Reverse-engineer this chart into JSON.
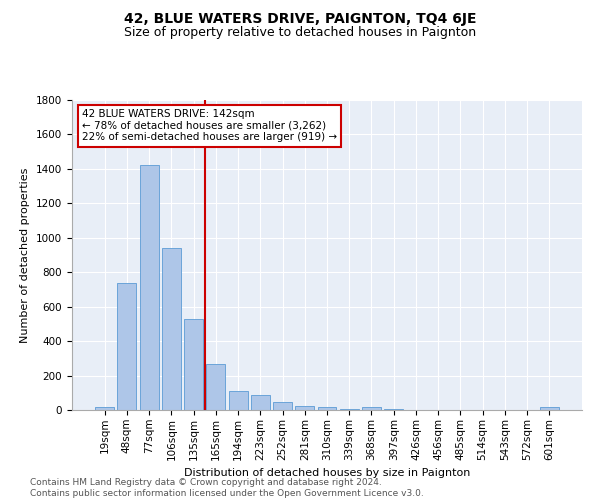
{
  "title": "42, BLUE WATERS DRIVE, PAIGNTON, TQ4 6JE",
  "subtitle": "Size of property relative to detached houses in Paignton",
  "xlabel": "Distribution of detached houses by size in Paignton",
  "ylabel": "Number of detached properties",
  "bar_labels": [
    "19sqm",
    "48sqm",
    "77sqm",
    "106sqm",
    "135sqm",
    "165sqm",
    "194sqm",
    "223sqm",
    "252sqm",
    "281sqm",
    "310sqm",
    "339sqm",
    "368sqm",
    "397sqm",
    "426sqm",
    "456sqm",
    "485sqm",
    "514sqm",
    "543sqm",
    "572sqm",
    "601sqm"
  ],
  "bar_values": [
    20,
    740,
    1420,
    940,
    530,
    265,
    110,
    90,
    45,
    25,
    15,
    5,
    15,
    3,
    2,
    1,
    1,
    1,
    0,
    0,
    15
  ],
  "bar_color": "#aec6e8",
  "bar_edgecolor": "#5b9bd5",
  "annotation_title": "42 BLUE WATERS DRIVE: 142sqm",
  "annotation_line1": "← 78% of detached houses are smaller (3,262)",
  "annotation_line2": "22% of semi-detached houses are larger (919) →",
  "annotation_box_color": "#ffffff",
  "annotation_box_edgecolor": "#cc0000",
  "ref_line_color": "#cc0000",
  "ylim": [
    0,
    1800
  ],
  "yticks": [
    0,
    200,
    400,
    600,
    800,
    1000,
    1200,
    1400,
    1600,
    1800
  ],
  "footer_line1": "Contains HM Land Registry data © Crown copyright and database right 2024.",
  "footer_line2": "Contains public sector information licensed under the Open Government Licence v3.0.",
  "background_color": "#e8eef7",
  "title_fontsize": 10,
  "subtitle_fontsize": 9,
  "axis_label_fontsize": 8,
  "tick_fontsize": 7.5,
  "annotation_fontsize": 7.5,
  "footer_fontsize": 6.5
}
